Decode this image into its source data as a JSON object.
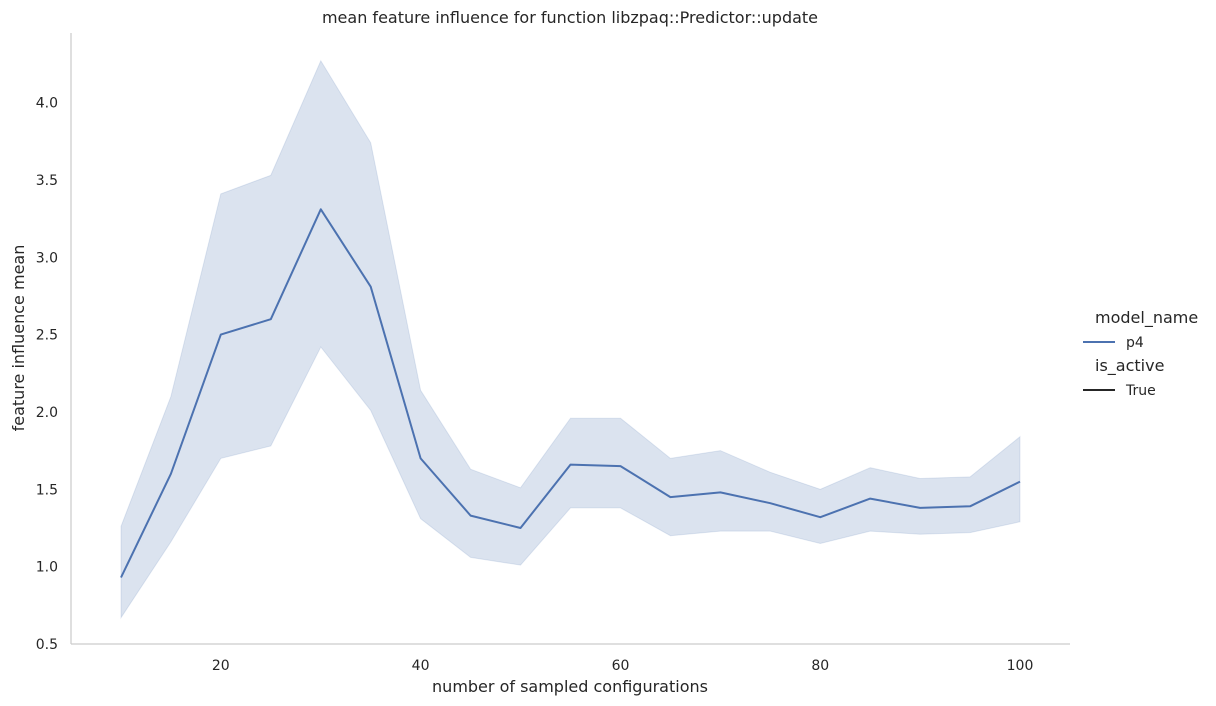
{
  "chart_data": {
    "type": "line",
    "title": "mean feature influence for function libzpaq::Predictor::update",
    "xlabel": "number of sampled configurations",
    "ylabel": "feature influence mean",
    "xlim": [
      5,
      105
    ],
    "ylim": [
      0.5,
      4.45
    ],
    "x_ticks": [
      20,
      40,
      60,
      80,
      100
    ],
    "y_ticks": [
      0.5,
      1.0,
      1.5,
      2.0,
      2.5,
      3.0,
      3.5,
      4.0
    ],
    "grid": false,
    "legend_position": "right",
    "x": [
      10,
      15,
      20,
      25,
      30,
      35,
      40,
      45,
      50,
      55,
      60,
      65,
      70,
      75,
      80,
      85,
      90,
      95,
      100
    ],
    "series": [
      {
        "name": "p4",
        "color": "#4c72b0",
        "band_color": "#c5d1e6",
        "values": [
          0.93,
          1.6,
          2.5,
          2.6,
          3.31,
          2.81,
          1.7,
          1.33,
          1.25,
          1.66,
          1.65,
          1.45,
          1.48,
          1.41,
          1.32,
          1.44,
          1.38,
          1.39,
          1.55
        ],
        "ci_upper": [
          1.26,
          2.1,
          3.41,
          3.53,
          4.27,
          3.74,
          2.14,
          1.63,
          1.51,
          1.96,
          1.96,
          1.7,
          1.75,
          1.61,
          1.5,
          1.64,
          1.57,
          1.58,
          1.84
        ],
        "ci_lower": [
          0.67,
          1.16,
          1.7,
          1.78,
          2.42,
          2.01,
          1.31,
          1.06,
          1.01,
          1.38,
          1.38,
          1.2,
          1.23,
          1.23,
          1.15,
          1.23,
          1.21,
          1.22,
          1.29
        ]
      }
    ],
    "legend": {
      "groups": [
        {
          "title": "model_name",
          "entries": [
            {
              "label": "p4",
              "color": "#4c72b0"
            }
          ]
        },
        {
          "title": "is_active",
          "entries": [
            {
              "label": "True",
              "color": "#262626"
            }
          ]
        }
      ]
    }
  }
}
